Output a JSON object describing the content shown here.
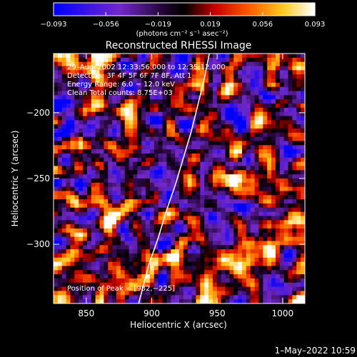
{
  "chart_data": {
    "type": "heatmap",
    "title": "Reconstructed RHESSI Image",
    "xlabel": "Heliocentric X (arcsec)",
    "ylabel": "Heliocentric Y (arcsec)",
    "xlim": [
      825,
      1017
    ],
    "ylim": [
      -345,
      -155
    ],
    "x_ticks": [
      850,
      900,
      950,
      1000
    ],
    "x_tick_labels": [
      "850",
      "900",
      "950",
      "1000"
    ],
    "y_ticks": [
      -200,
      -250,
      -300
    ],
    "y_tick_labels": [
      "−200",
      "−250",
      "−300"
    ],
    "colorbar": {
      "min": -0.093,
      "max": 0.093,
      "tick_labels": [
        "−0.093",
        "−0.056",
        "−0.019",
        "0.019",
        "0.056",
        "0.093"
      ],
      "unit_label": "(photons cm⁻² s⁻¹ asec⁻²)"
    },
    "annotations": [
      "29–Aug–2002 12:33:56.000 to 12:35:12.000",
      "Detectors: 3F 4F 5F 6F 7F 8F, Att 1",
      "Energy Range: 6.0 − 12.0 keV",
      "Clean    Total counts: 8.75E+03"
    ],
    "peak_label": "Position of Peak = [982,−225]",
    "peak": [
      982,
      -225
    ],
    "limb_x": [
      944,
      940,
      935,
      930,
      924,
      918,
      911,
      905,
      898,
      890
    ],
    "limb_y": [
      -155,
      -175,
      -195,
      -215,
      -235,
      -255,
      -275,
      -295,
      -315,
      -345
    ],
    "grid_size": 60,
    "seed": 7
  },
  "footer": {
    "timestamp": "1–May–2022 10:59"
  }
}
